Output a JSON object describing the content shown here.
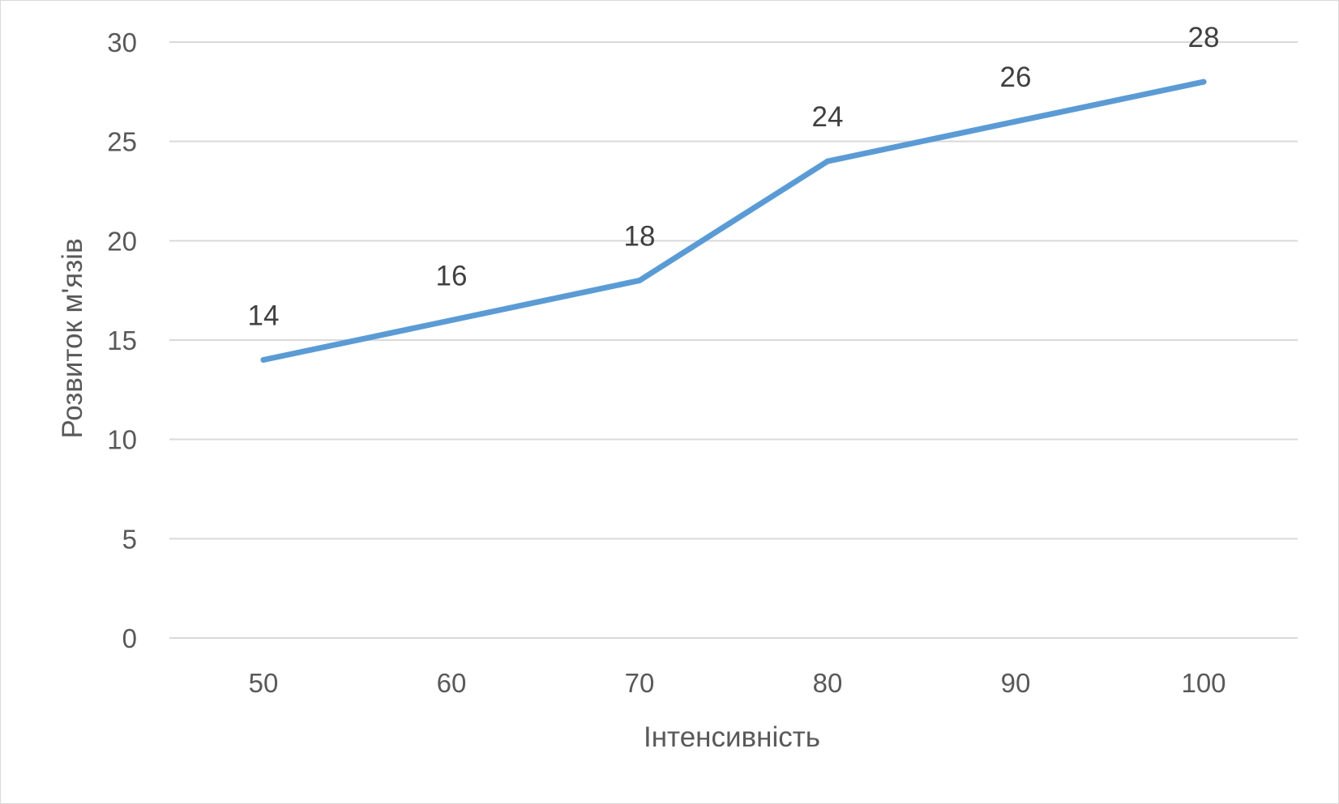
{
  "chart_data": {
    "type": "line",
    "x": [
      50,
      60,
      70,
      80,
      90,
      100
    ],
    "categories": [
      "50",
      "60",
      "70",
      "80",
      "90",
      "100"
    ],
    "series": [
      {
        "values": [
          14,
          16,
          18,
          24,
          26,
          28
        ]
      }
    ],
    "data_labels": [
      "14",
      "16",
      "18",
      "24",
      "26",
      "28"
    ],
    "xlabel": "Інтенсивність",
    "ylabel": "Розвиток м'язів",
    "ylim": [
      0,
      30
    ],
    "yticks": [
      "0",
      "5",
      "10",
      "15",
      "20",
      "25",
      "30"
    ],
    "grid": true,
    "legend": "none",
    "colors": {
      "line": "#5b9bd5",
      "grid": "#d9d9d9",
      "text": "#595959",
      "data_label": "#404040"
    }
  }
}
